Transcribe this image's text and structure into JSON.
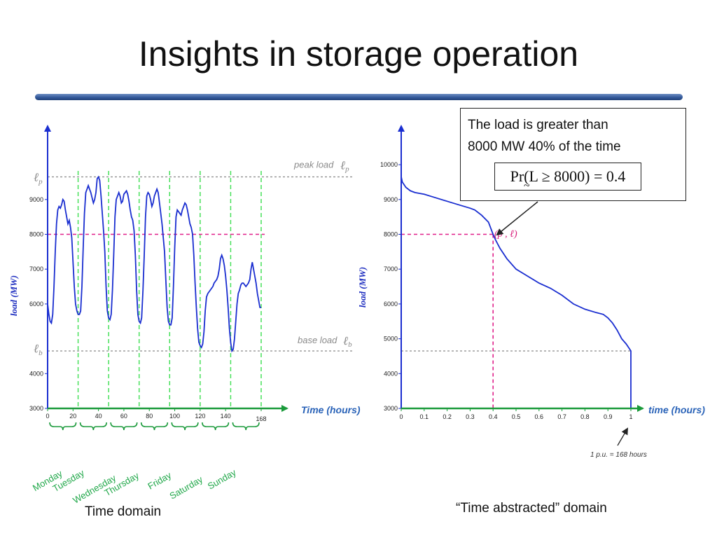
{
  "slide": {
    "title": "Insights in storage operation",
    "callout": {
      "line1": "The load is greater than",
      "line2": "8000 MW 40% of the time",
      "formula": "Pr(L ≥ 8000) = 0.4",
      "formula_tilde": "~"
    },
    "caption_left": "Time domain",
    "caption_right": "“Time abstracted” domain"
  },
  "colors": {
    "load_curve": "#1a2ed0",
    "axis_green": "#1a9a3a",
    "day_dividers": "#47e05a",
    "threshold_magenta": "#e0208a",
    "reference_gray": "#8a8a8a",
    "divider_blue": "#2f5597"
  },
  "chart_data": [
    {
      "type": "line",
      "ylabel": "load (MW)",
      "xlabel": "Time (hours)",
      "ylim": [
        3000,
        10000
      ],
      "xlim": [
        0,
        168
      ],
      "y_ticks": [
        "3000",
        "4000",
        "6000",
        "7000",
        "8000",
        "9000"
      ],
      "x_ticks": [
        "0",
        "20",
        "40",
        "60",
        "80",
        "100",
        "120",
        "140",
        "168"
      ],
      "day_labels": [
        "Monday",
        "Tuesday",
        "Wednesday",
        "Thursday",
        "Friday",
        "Saturday",
        "Sunday"
      ],
      "day_boundaries": [
        0,
        24,
        48,
        72,
        96,
        120,
        144,
        168
      ],
      "threshold": 8000,
      "peak_load": 9650,
      "base_load": 4650,
      "annotations": {
        "peak_text": "peak load",
        "base_text": "base load",
        "peak_sym": "ℓp",
        "base_sym": "ℓb",
        "peak_sub": "p",
        "base_sub": "b",
        "ell": "ℓ"
      },
      "series": [
        {
          "x": [
            0,
            1,
            2,
            3,
            4,
            5,
            6,
            7,
            8,
            9,
            10,
            11,
            12,
            13,
            14,
            15,
            16,
            17,
            18,
            19,
            20,
            21,
            22,
            23,
            24,
            25,
            26,
            27,
            28,
            29,
            30,
            31,
            32,
            33,
            34,
            35,
            36,
            37,
            38,
            39,
            40,
            41,
            42,
            43,
            44,
            45,
            46,
            47,
            48,
            49,
            50,
            51,
            52,
            53,
            54,
            55,
            56,
            57,
            58,
            59,
            60,
            61,
            62,
            63,
            64,
            65,
            66,
            67,
            68,
            69,
            70,
            71,
            72,
            73,
            74,
            75,
            76,
            77,
            78,
            79,
            80,
            81,
            82,
            83,
            84,
            85,
            86,
            87,
            88,
            89,
            90,
            91,
            92,
            93,
            94,
            95,
            96,
            97,
            98,
            99,
            100,
            101,
            102,
            103,
            104,
            105,
            106,
            107,
            108,
            109,
            110,
            111,
            112,
            113,
            114,
            115,
            116,
            117,
            118,
            119,
            120,
            121,
            122,
            123,
            124,
            125,
            126,
            127,
            128,
            129,
            130,
            131,
            132,
            133,
            134,
            135,
            136,
            137,
            138,
            139,
            140,
            141,
            142,
            143,
            144,
            145,
            146,
            147,
            148,
            149,
            150,
            151,
            152,
            153,
            154,
            155,
            156,
            157,
            158,
            159,
            160,
            161,
            162,
            163,
            164,
            165,
            166,
            167,
            168
          ],
          "y": [
            6000,
            5700,
            5500,
            5450,
            5700,
            6500,
            7500,
            8300,
            8700,
            8800,
            8750,
            8850,
            9000,
            8950,
            8700,
            8500,
            8300,
            8400,
            8200,
            7900,
            7200,
            6500,
            6000,
            5800,
            5700,
            5700,
            5800,
            6500,
            7600,
            8600,
            9200,
            9300,
            9400,
            9300,
            9200,
            9050,
            8900,
            9000,
            9200,
            9600,
            9650,
            9550,
            9100,
            8600,
            8100,
            7500,
            6500,
            5800,
            5600,
            5550,
            5700,
            6400,
            7400,
            8500,
            9000,
            9100,
            9200,
            9100,
            8900,
            8950,
            9150,
            9200,
            9250,
            9150,
            8950,
            8700,
            8500,
            8400,
            8100,
            7400,
            6400,
            5700,
            5500,
            5450,
            5600,
            6400,
            7400,
            8500,
            9100,
            9200,
            9150,
            9000,
            8800,
            8900,
            9100,
            9200,
            9300,
            9200,
            8900,
            8600,
            8300,
            7900,
            7500,
            6700,
            5900,
            5500,
            5400,
            5400,
            5600,
            6500,
            7600,
            8500,
            8700,
            8650,
            8600,
            8550,
            8700,
            8800,
            8900,
            8850,
            8700,
            8500,
            8300,
            8200,
            8000,
            7400,
            6600,
            5900,
            5300,
            4900,
            4800,
            4750,
            4850,
            5200,
            5800,
            6200,
            6300,
            6350,
            6400,
            6450,
            6500,
            6600,
            6650,
            6700,
            6800,
            7000,
            7300,
            7400,
            7300,
            7100,
            6800,
            6400,
            5900,
            5300,
            4900,
            4650,
            4700,
            5000,
            5500,
            6000,
            6300,
            6400,
            6550,
            6600,
            6600,
            6550,
            6500,
            6550,
            6600,
            6700,
            7000,
            7200,
            7000,
            6800,
            6600,
            6300,
            6100,
            5900,
            5900
          ]
        }
      ]
    },
    {
      "type": "line",
      "ylabel": "load (MW)",
      "xlabel": "time (hours)",
      "ylim": [
        3000,
        10000
      ],
      "xlim": [
        0,
        1
      ],
      "y_ticks": [
        "3000",
        "4000",
        "5000",
        "6000",
        "7000",
        "8000",
        "9000",
        "10000"
      ],
      "x_ticks": [
        "0",
        "0.1",
        "0.2",
        "0.3",
        "0.4",
        "0.5",
        "0.6",
        "0.7",
        "0.8",
        "0.9",
        "1"
      ],
      "threshold": 8000,
      "threshold_p": 0.4,
      "point_label": "(p , ℓ)",
      "x_note": "1 p.u. = 168 hours",
      "series": [
        {
          "x": [
            0,
            0.005,
            0.02,
            0.04,
            0.06,
            0.1,
            0.15,
            0.2,
            0.25,
            0.3,
            0.32,
            0.35,
            0.38,
            0.4,
            0.41,
            0.43,
            0.46,
            0.5,
            0.55,
            0.6,
            0.65,
            0.7,
            0.75,
            0.8,
            0.85,
            0.88,
            0.9,
            0.92,
            0.94,
            0.96,
            0.98,
            0.99,
            1.0,
            1.0
          ],
          "y": [
            9650,
            9500,
            9350,
            9250,
            9200,
            9150,
            9050,
            8950,
            8850,
            8750,
            8700,
            8550,
            8350,
            8000,
            7850,
            7600,
            7300,
            7000,
            6800,
            6600,
            6450,
            6250,
            6000,
            5850,
            5750,
            5700,
            5600,
            5450,
            5250,
            5000,
            4850,
            4750,
            4650,
            3000
          ]
        }
      ]
    }
  ]
}
